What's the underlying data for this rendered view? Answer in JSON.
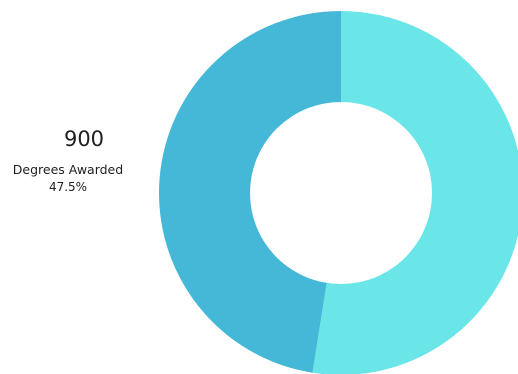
{
  "chart_data": {
    "type": "pie",
    "variant": "donut",
    "series": [
      {
        "slices": [
          {
            "value": 995,
            "percent": 52.5,
            "color": "#6ae5e8"
          },
          {
            "label": "Degrees Awarded",
            "value": 900,
            "percent": 47.5,
            "value_label": "900",
            "percent_label": "47.5%",
            "color": "#44b8d6"
          }
        ]
      }
    ]
  }
}
